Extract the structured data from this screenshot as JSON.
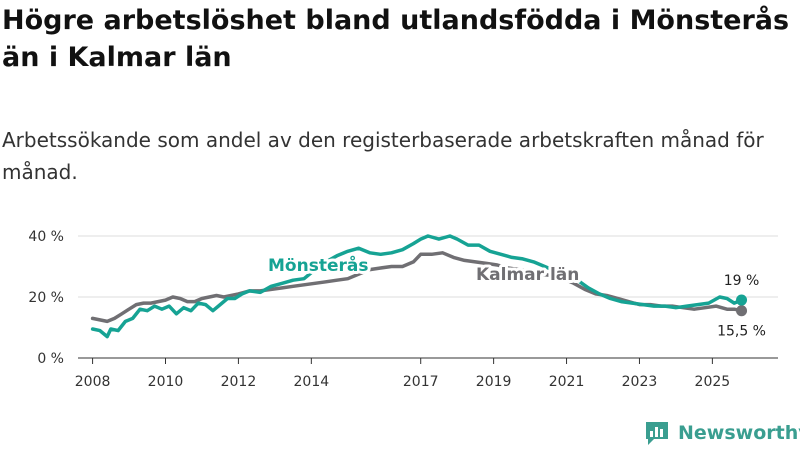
{
  "title": "Högre arbetslöshet bland utlandsfödda i Mönsterås än i Kalmar län",
  "subtitle": "Arbetssökande som andel av den registerbaserade arbetskraften månad för månad.",
  "brand": "Newsworthy",
  "colors": {
    "monsteras": "#16a394",
    "kalmar": "#706f73",
    "grid": "#dddddd",
    "axis": "#333333"
  },
  "chart_data": {
    "type": "line",
    "title": "Högre arbetslöshet bland utlandsfödda i Mönsterås än i Kalmar län",
    "xlabel": "",
    "ylabel": "",
    "xlim": [
      2007.6,
      2026.8
    ],
    "ylim": [
      0,
      40
    ],
    "grid": true,
    "x_ticks": [
      2008,
      2010,
      2012,
      2014,
      2017,
      2019,
      2021,
      2023,
      2025
    ],
    "x_tick_labels": [
      "2008",
      "2010",
      "2012",
      "2014",
      "2017",
      "2019",
      "2021",
      "2023",
      "2025"
    ],
    "y_ticks": [
      0,
      20,
      40
    ],
    "y_tick_labels": [
      "0 %",
      "20 %",
      "40 %"
    ],
    "series": [
      {
        "name": "Mönsterås",
        "label": "Mönsterås",
        "end_label": "19 %",
        "color": "#16a394",
        "x": [
          2008.0,
          2008.2,
          2008.4,
          2008.5,
          2008.7,
          2008.9,
          2009.1,
          2009.3,
          2009.5,
          2009.7,
          2009.9,
          2010.1,
          2010.3,
          2010.5,
          2010.7,
          2010.9,
          2011.1,
          2011.3,
          2011.5,
          2011.7,
          2011.9,
          2012.1,
          2012.3,
          2012.6,
          2012.9,
          2013.2,
          2013.5,
          2013.8,
          2014.1,
          2014.4,
          2014.7,
          2015.0,
          2015.3,
          2015.6,
          2015.9,
          2016.2,
          2016.5,
          2016.8,
          2017.0,
          2017.2,
          2017.5,
          2017.8,
          2018.0,
          2018.3,
          2018.6,
          2018.9,
          2019.2,
          2019.5,
          2019.8,
          2020.1,
          2020.4,
          2020.7,
          2021.0,
          2021.3,
          2021.6,
          2021.9,
          2022.2,
          2022.5,
          2022.8,
          2023.1,
          2023.4,
          2023.7,
          2024.0,
          2024.3,
          2024.6,
          2024.9,
          2025.2,
          2025.4,
          2025.6,
          2025.8
        ],
        "y": [
          9.5,
          9.0,
          7.0,
          9.5,
          9.0,
          12.0,
          13.0,
          16.0,
          15.5,
          17.0,
          16.0,
          17.0,
          14.5,
          16.5,
          15.5,
          18.0,
          17.5,
          15.5,
          17.5,
          19.5,
          19.5,
          21.0,
          22.0,
          21.5,
          23.5,
          24.5,
          25.5,
          26.0,
          29.0,
          31.5,
          33.5,
          35.0,
          36.0,
          34.5,
          34.0,
          34.5,
          35.5,
          37.5,
          39.0,
          40.0,
          39.0,
          40.0,
          39.0,
          37.0,
          37.0,
          35.0,
          34.0,
          33.0,
          32.5,
          31.5,
          30.0,
          28.5,
          27.5,
          25.5,
          23.0,
          21.0,
          19.5,
          18.5,
          18.0,
          17.5,
          17.0,
          17.0,
          16.5,
          17.0,
          17.5,
          18.0,
          20.0,
          19.5,
          18.0,
          19.0
        ]
      },
      {
        "name": "Kalmar län",
        "label": "Kalmar län",
        "end_label": "15,5 %",
        "color": "#706f73",
        "x": [
          2008.0,
          2008.2,
          2008.4,
          2008.6,
          2008.8,
          2009.0,
          2009.2,
          2009.4,
          2009.6,
          2009.8,
          2010.0,
          2010.2,
          2010.4,
          2010.6,
          2010.8,
          2011.0,
          2011.2,
          2011.4,
          2011.6,
          2011.8,
          2012.0,
          2012.3,
          2012.6,
          2012.9,
          2013.2,
          2013.5,
          2013.8,
          2014.1,
          2014.4,
          2014.7,
          2015.0,
          2015.3,
          2015.6,
          2015.9,
          2016.2,
          2016.5,
          2016.8,
          2017.0,
          2017.3,
          2017.6,
          2017.9,
          2018.2,
          2018.5,
          2018.8,
          2019.1,
          2019.4,
          2019.7,
          2020.0,
          2020.3,
          2020.6,
          2020.9,
          2021.2,
          2021.5,
          2021.8,
          2022.1,
          2022.4,
          2022.7,
          2023.0,
          2023.3,
          2023.6,
          2023.9,
          2024.2,
          2024.5,
          2024.8,
          2025.1,
          2025.4,
          2025.6,
          2025.8
        ],
        "y": [
          13.0,
          12.5,
          12.0,
          13.0,
          14.5,
          16.0,
          17.5,
          18.0,
          18.0,
          18.5,
          19.0,
          20.0,
          19.5,
          18.5,
          18.5,
          19.5,
          20.0,
          20.5,
          20.0,
          20.5,
          21.0,
          22.0,
          22.0,
          22.5,
          23.0,
          23.5,
          24.0,
          24.5,
          25.0,
          25.5,
          26.0,
          27.5,
          29.0,
          29.5,
          30.0,
          30.0,
          31.5,
          34.0,
          34.0,
          34.5,
          33.0,
          32.0,
          31.5,
          31.0,
          30.5,
          29.5,
          29.0,
          28.5,
          27.5,
          27.0,
          26.0,
          24.5,
          22.5,
          21.0,
          20.5,
          19.5,
          18.5,
          17.5,
          17.5,
          17.0,
          17.0,
          16.5,
          16.0,
          16.5,
          17.0,
          16.0,
          16.0,
          15.5
        ]
      }
    ]
  }
}
